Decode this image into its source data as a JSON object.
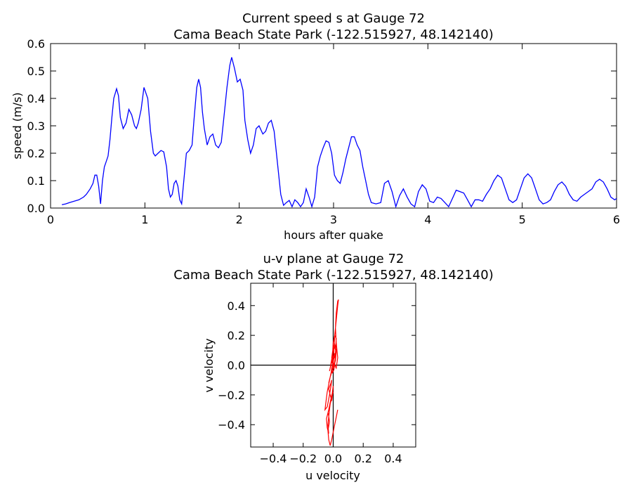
{
  "chart_data": [
    {
      "type": "line",
      "title": "Current speed s at Gauge 72",
      "subtitle": "Cama Beach State Park  (-122.515927, 48.142140)",
      "xlabel": "hours after quake",
      "ylabel": "speed (m/s)",
      "xlim": [
        0,
        6
      ],
      "ylim": [
        0,
        0.6
      ],
      "xticks": [
        0,
        1,
        2,
        3,
        4,
        5,
        6
      ],
      "xtick_labels": [
        "0",
        "1",
        "2",
        "3",
        "4",
        "5",
        "6"
      ],
      "yticks": [
        0,
        0.1,
        0.2,
        0.3,
        0.4,
        0.5,
        0.6
      ],
      "ytick_labels": [
        "0.0",
        "0.1",
        "0.2",
        "0.3",
        "0.4",
        "0.5",
        "0.6"
      ],
      "grid": false,
      "color": "#0000ff",
      "series": [
        {
          "x": [
            0.12,
            0.16,
            0.2,
            0.25,
            0.3,
            0.35,
            0.38,
            0.42,
            0.45,
            0.47,
            0.49,
            0.51,
            0.53,
            0.55,
            0.57,
            0.59,
            0.61,
            0.63,
            0.65,
            0.67,
            0.7,
            0.72,
            0.74,
            0.77,
            0.8,
            0.83,
            0.86,
            0.89,
            0.91,
            0.93,
            0.96,
            0.99,
            1.03,
            1.06,
            1.09,
            1.11,
            1.14,
            1.17,
            1.2,
            1.23,
            1.25,
            1.27,
            1.29,
            1.31,
            1.33,
            1.35,
            1.37,
            1.39,
            1.41,
            1.44,
            1.47,
            1.5,
            1.52,
            1.55,
            1.57,
            1.59,
            1.61,
            1.63,
            1.66,
            1.69,
            1.72,
            1.75,
            1.78,
            1.81,
            1.84,
            1.87,
            1.9,
            1.92,
            1.95,
            1.98,
            2.01,
            2.04,
            2.06,
            2.09,
            2.12,
            2.15,
            2.18,
            2.21,
            2.25,
            2.28,
            2.31,
            2.34,
            2.37,
            2.41,
            2.44,
            2.47,
            2.5,
            2.53,
            2.56,
            2.59,
            2.62,
            2.65,
            2.68,
            2.71,
            2.74,
            2.77,
            2.8,
            2.83,
            2.86,
            2.89,
            2.92,
            2.95,
            2.98,
            3.01,
            3.04,
            3.07,
            3.1,
            3.13,
            3.16,
            3.19,
            3.22,
            3.25,
            3.28,
            3.31,
            3.34,
            3.37,
            3.4,
            3.45,
            3.5,
            3.54,
            3.58,
            3.62,
            3.66,
            3.7,
            3.74,
            3.78,
            3.82,
            3.86,
            3.9,
            3.94,
            3.98,
            4.02,
            4.06,
            4.1,
            4.14,
            4.18,
            4.22,
            4.26,
            4.3,
            4.34,
            4.38,
            4.42,
            4.46,
            4.5,
            4.54,
            4.58,
            4.62,
            4.66,
            4.7,
            4.74,
            4.78,
            4.82,
            4.86,
            4.9,
            4.94,
            4.98,
            5.02,
            5.06,
            5.1,
            5.14,
            5.18,
            5.22,
            5.26,
            5.3,
            5.34,
            5.38,
            5.42,
            5.46,
            5.5,
            5.54,
            5.58,
            5.62,
            5.66,
            5.7,
            5.74,
            5.78,
            5.82,
            5.86,
            5.9,
            5.94,
            5.98,
            6.0
          ],
          "y": [
            0.012,
            0.015,
            0.02,
            0.025,
            0.03,
            0.04,
            0.05,
            0.07,
            0.09,
            0.12,
            0.12,
            0.08,
            0.015,
            0.1,
            0.15,
            0.17,
            0.19,
            0.25,
            0.33,
            0.4,
            0.435,
            0.41,
            0.33,
            0.29,
            0.31,
            0.36,
            0.34,
            0.3,
            0.29,
            0.31,
            0.36,
            0.44,
            0.4,
            0.28,
            0.2,
            0.19,
            0.2,
            0.21,
            0.205,
            0.15,
            0.07,
            0.04,
            0.05,
            0.09,
            0.1,
            0.08,
            0.03,
            0.015,
            0.09,
            0.2,
            0.21,
            0.23,
            0.32,
            0.44,
            0.47,
            0.44,
            0.35,
            0.29,
            0.23,
            0.26,
            0.27,
            0.23,
            0.22,
            0.24,
            0.34,
            0.44,
            0.52,
            0.55,
            0.51,
            0.46,
            0.47,
            0.43,
            0.32,
            0.25,
            0.2,
            0.23,
            0.29,
            0.3,
            0.27,
            0.28,
            0.31,
            0.32,
            0.28,
            0.15,
            0.05,
            0.01,
            0.02,
            0.028,
            0.005,
            0.03,
            0.02,
            0.005,
            0.02,
            0.07,
            0.04,
            0.005,
            0.04,
            0.15,
            0.19,
            0.22,
            0.245,
            0.24,
            0.2,
            0.12,
            0.1,
            0.09,
            0.13,
            0.18,
            0.22,
            0.26,
            0.26,
            0.23,
            0.21,
            0.15,
            0.1,
            0.05,
            0.02,
            0.015,
            0.02,
            0.09,
            0.1,
            0.06,
            0.005,
            0.045,
            0.07,
            0.04,
            0.015,
            0.005,
            0.06,
            0.085,
            0.07,
            0.025,
            0.02,
            0.04,
            0.035,
            0.02,
            0.005,
            0.035,
            0.065,
            0.06,
            0.055,
            0.03,
            0.005,
            0.03,
            0.03,
            0.025,
            0.05,
            0.07,
            0.1,
            0.12,
            0.11,
            0.07,
            0.03,
            0.02,
            0.03,
            0.07,
            0.11,
            0.125,
            0.11,
            0.07,
            0.03,
            0.015,
            0.02,
            0.03,
            0.06,
            0.085,
            0.095,
            0.08,
            0.05,
            0.03,
            0.025,
            0.04,
            0.05,
            0.06,
            0.07,
            0.095,
            0.105,
            0.095,
            0.07,
            0.04,
            0.03,
            0.035
          ]
        }
      ]
    },
    {
      "type": "line",
      "title": "u-v plane at Gauge 72",
      "subtitle": "Cama Beach State Park  (-122.515927, 48.142140)",
      "xlabel": "u velocity",
      "ylabel": "v velocity",
      "xlim": [
        -0.55,
        0.55
      ],
      "ylim": [
        -0.55,
        0.55
      ],
      "xticks": [
        -0.4,
        -0.2,
        0,
        0.2,
        0.4
      ],
      "xtick_labels": [
        "−0.4",
        "−0.2",
        "0.0",
        "0.2",
        "0.4"
      ],
      "yticks": [
        -0.4,
        -0.2,
        0,
        0.2,
        0.4
      ],
      "ytick_labels": [
        "−0.4",
        "−0.2",
        "0.0",
        "0.2",
        "0.4"
      ],
      "grid": false,
      "color": "#ff0000",
      "series": [
        {
          "x": [
            0.0,
            0.005,
            0.01,
            0.02,
            0.03,
            0.035,
            0.03,
            0.02,
            0.015,
            0.02,
            0.03,
            0.02,
            0.01,
            0.015,
            0.02,
            0.01,
            0.0,
            -0.005,
            0.0,
            0.01,
            0.02,
            0.01,
            0.0,
            -0.01,
            0.0,
            0.015,
            0.02,
            0.01,
            0.0,
            -0.01,
            -0.02,
            -0.025,
            -0.02,
            -0.01,
            0.0,
            0.01,
            0.005,
            -0.005,
            -0.01,
            -0.005,
            0.005,
            0.01,
            0.015,
            0.01,
            0.0,
            -0.01,
            -0.02,
            -0.03,
            -0.025,
            -0.015,
            -0.01,
            -0.005,
            0.0,
            0.005,
            -0.005,
            -0.02,
            -0.04,
            -0.05,
            -0.055,
            -0.04,
            -0.025,
            -0.015,
            -0.01,
            -0.015,
            -0.03,
            -0.02,
            -0.01,
            -0.005,
            0.0,
            -0.005,
            -0.01,
            -0.03,
            -0.045,
            -0.04,
            -0.03,
            -0.035,
            -0.03,
            -0.025,
            -0.02,
            -0.01,
            0.0,
            -0.01,
            -0.02,
            -0.03,
            -0.035,
            -0.03,
            -0.025,
            -0.035,
            -0.03,
            -0.02,
            -0.01,
            0.0,
            0.01,
            0.02,
            0.03
          ],
          "y": [
            0.0,
            0.1,
            0.2,
            0.3,
            0.4,
            0.44,
            0.43,
            0.35,
            0.25,
            0.15,
            0.05,
            -0.02,
            0.0,
            0.08,
            0.18,
            0.2,
            0.15,
            0.06,
            -0.02,
            0.02,
            0.1,
            0.14,
            0.12,
            0.05,
            -0.01,
            0.03,
            0.09,
            0.12,
            0.1,
            0.04,
            -0.02,
            -0.04,
            -0.02,
            0.02,
            0.06,
            0.08,
            0.05,
            0.0,
            -0.02,
            -0.05,
            -0.03,
            0.01,
            0.04,
            0.06,
            0.03,
            -0.03,
            -0.08,
            -0.12,
            -0.1,
            -0.06,
            -0.02,
            0.0,
            0.02,
            0.0,
            -0.03,
            -0.08,
            -0.18,
            -0.26,
            -0.3,
            -0.28,
            -0.2,
            -0.14,
            -0.1,
            -0.12,
            -0.16,
            -0.2,
            -0.24,
            -0.2,
            -0.14,
            -0.18,
            -0.22,
            -0.3,
            -0.36,
            -0.42,
            -0.46,
            -0.4,
            -0.35,
            -0.3,
            -0.26,
            -0.22,
            -0.18,
            -0.2,
            -0.25,
            -0.3,
            -0.32,
            -0.34,
            -0.38,
            -0.44,
            -0.5,
            -0.54,
            -0.5,
            -0.45,
            -0.4,
            -0.35,
            -0.3
          ]
        }
      ]
    }
  ]
}
